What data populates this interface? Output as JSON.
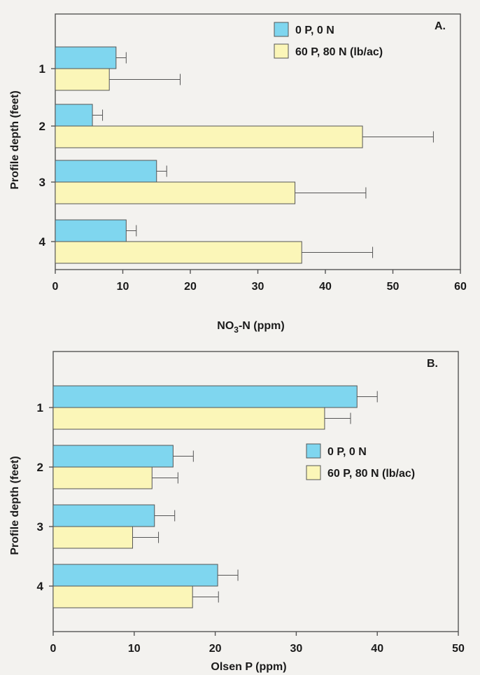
{
  "colors": {
    "series1": "#7fd6ef",
    "series2": "#fbf6b8",
    "frame": "#555555",
    "error_bar": "#555555"
  },
  "chart_data": [
    {
      "type": "bar",
      "orientation": "horizontal",
      "panel_label": "A.",
      "xlabel": "NO3-N (ppm)",
      "xlabel_parts": {
        "pre": "NO",
        "sub": "3",
        "post": "-N (ppm)"
      },
      "ylabel": "Profile depth (feet)",
      "categories": [
        "1",
        "2",
        "3",
        "4"
      ],
      "xlim": [
        0,
        60
      ],
      "xticks": [
        0,
        10,
        20,
        30,
        40,
        50,
        60
      ],
      "grid": false,
      "legend_position": "top-right",
      "series": [
        {
          "name": "0 P, 0 N",
          "values": [
            9,
            5.5,
            15,
            10.5
          ],
          "errors": [
            1.5,
            1.5,
            1.5,
            1.5
          ],
          "color": "#7fd6ef"
        },
        {
          "name": "60 P, 80 N (lb/ac)",
          "values": [
            8,
            45.5,
            35.5,
            36.5
          ],
          "errors": [
            10.5,
            10.5,
            10.5,
            10.5
          ],
          "color": "#fbf6b8"
        }
      ]
    },
    {
      "type": "bar",
      "orientation": "horizontal",
      "panel_label": "B.",
      "xlabel": "Olsen P (ppm)",
      "ylabel": "Profile depth (feet)",
      "categories": [
        "1",
        "2",
        "3",
        "4"
      ],
      "xlim": [
        0,
        50
      ],
      "xticks": [
        0,
        10,
        20,
        30,
        40,
        50
      ],
      "grid": false,
      "legend_position": "middle-right",
      "series": [
        {
          "name": "0 P, 0 N",
          "values": [
            37.5,
            14.8,
            12.5,
            20.3
          ],
          "errors": [
            2.5,
            2.5,
            2.5,
            2.5
          ],
          "color": "#7fd6ef"
        },
        {
          "name": "60 P, 80 N (lb/ac)",
          "values": [
            33.5,
            12.2,
            9.8,
            17.2
          ],
          "errors": [
            3.2,
            3.2,
            3.2,
            3.2
          ],
          "color": "#fbf6b8"
        }
      ]
    }
  ]
}
